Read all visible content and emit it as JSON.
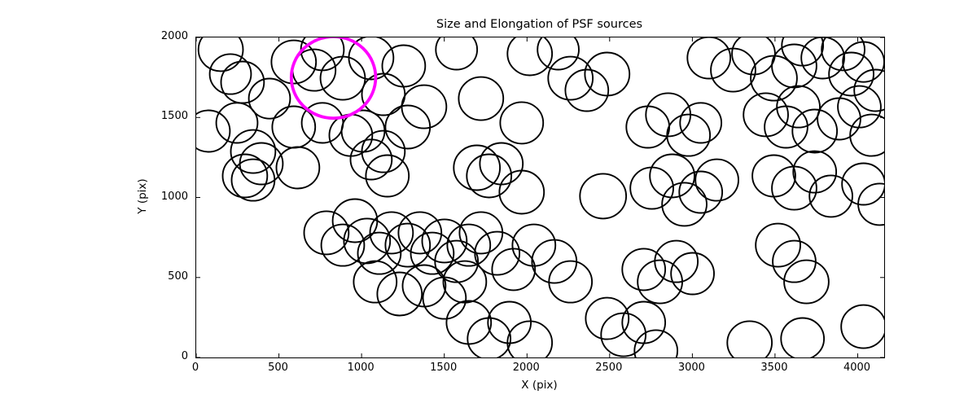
{
  "chart_data": {
    "type": "scatter",
    "title": "Size and Elongation of PSF sources",
    "xlabel": "X (pix)",
    "ylabel": "Y (pix)",
    "xlim": [
      0,
      4160
    ],
    "ylim": [
      0,
      2000
    ],
    "xticks": [
      0,
      500,
      1000,
      1500,
      2000,
      2500,
      3000,
      3500,
      4000
    ],
    "yticks": [
      0,
      500,
      1000,
      1500,
      2000
    ],
    "grid": false,
    "legend": "none",
    "marker_style": {
      "shape": "circle",
      "fill": "none",
      "edge_color": "#000000",
      "line_width": 1.9
    },
    "highlight_circle": {
      "x": 830,
      "y": 1750,
      "r": 255,
      "color": "#ff00ff",
      "line_width": 3.8
    },
    "circles": [
      [
        148,
        1924,
        135
      ],
      [
        207,
        1771,
        125
      ],
      [
        280,
        1720,
        130
      ],
      [
        443,
        1618,
        125
      ],
      [
        590,
        1847,
        135
      ],
      [
        713,
        1796,
        130
      ],
      [
        763,
        1924,
        130
      ],
      [
        886,
        1745,
        135
      ],
      [
        1058,
        1873,
        135
      ],
      [
        1132,
        1644,
        130
      ],
      [
        1255,
        1822,
        130
      ],
      [
        1378,
        1567,
        135
      ],
      [
        1574,
        1924,
        125
      ],
      [
        2017,
        1898,
        135
      ],
      [
        2189,
        1924,
        125
      ],
      [
        2263,
        1745,
        135
      ],
      [
        2362,
        1669,
        130
      ],
      [
        2485,
        1771,
        135
      ],
      [
        3100,
        1873,
        130
      ],
      [
        3247,
        1796,
        135
      ],
      [
        3370,
        1898,
        130
      ],
      [
        3493,
        1745,
        140
      ],
      [
        3616,
        1822,
        135
      ],
      [
        3666,
        1949,
        125
      ],
      [
        3789,
        1873,
        130
      ],
      [
        3912,
        1924,
        130
      ],
      [
        3961,
        1771,
        135
      ],
      [
        4035,
        1847,
        125
      ],
      [
        4109,
        1669,
        130
      ],
      [
        74,
        1415,
        130
      ],
      [
        246,
        1466,
        125
      ],
      [
        344,
        1287,
        135
      ],
      [
        394,
        1211,
        130
      ],
      [
        590,
        1440,
        130
      ],
      [
        763,
        1466,
        125
      ],
      [
        935,
        1389,
        130
      ],
      [
        1009,
        1415,
        130
      ],
      [
        1132,
        1287,
        130
      ],
      [
        1279,
        1440,
        135
      ],
      [
        1722,
        1618,
        135
      ],
      [
        1968,
        1466,
        130
      ],
      [
        2731,
        1440,
        130
      ],
      [
        2854,
        1517,
        135
      ],
      [
        2977,
        1389,
        130
      ],
      [
        3051,
        1466,
        125
      ],
      [
        3444,
        1517,
        135
      ],
      [
        3567,
        1440,
        130
      ],
      [
        3641,
        1567,
        130
      ],
      [
        3740,
        1415,
        135
      ],
      [
        3887,
        1491,
        130
      ],
      [
        4010,
        1567,
        130
      ],
      [
        4084,
        1389,
        130
      ],
      [
        295,
        1135,
        135
      ],
      [
        344,
        1109,
        130
      ],
      [
        615,
        1186,
        130
      ],
      [
        1058,
        1237,
        125
      ],
      [
        1156,
        1135,
        130
      ],
      [
        1697,
        1186,
        140
      ],
      [
        1771,
        1135,
        135
      ],
      [
        1845,
        1211,
        130
      ],
      [
        1968,
        1033,
        135
      ],
      [
        2460,
        1008,
        140
      ],
      [
        2755,
        1058,
        130
      ],
      [
        2878,
        1135,
        135
      ],
      [
        2952,
        957,
        135
      ],
      [
        3051,
        1033,
        130
      ],
      [
        3149,
        1109,
        130
      ],
      [
        3493,
        1135,
        130
      ],
      [
        3616,
        1058,
        135
      ],
      [
        3740,
        1160,
        130
      ],
      [
        3838,
        1008,
        130
      ],
      [
        4035,
        1084,
        130
      ],
      [
        4133,
        957,
        130
      ],
      [
        787,
        779,
        135
      ],
      [
        886,
        702,
        130
      ],
      [
        960,
        855,
        135
      ],
      [
        1033,
        728,
        140
      ],
      [
        1107,
        651,
        130
      ],
      [
        1181,
        779,
        130
      ],
      [
        1279,
        702,
        135
      ],
      [
        1353,
        779,
        130
      ],
      [
        1427,
        651,
        130
      ],
      [
        1501,
        728,
        135
      ],
      [
        1574,
        600,
        130
      ],
      [
        1648,
        702,
        130
      ],
      [
        1722,
        779,
        130
      ],
      [
        1820,
        651,
        135
      ],
      [
        1919,
        550,
        130
      ],
      [
        1082,
        473,
        130
      ],
      [
        1230,
        397,
        135
      ],
      [
        1378,
        448,
        130
      ],
      [
        1501,
        371,
        130
      ],
      [
        1624,
        473,
        130
      ],
      [
        2042,
        702,
        130
      ],
      [
        2165,
        600,
        135
      ],
      [
        2263,
        473,
        130
      ],
      [
        2706,
        550,
        130
      ],
      [
        2804,
        473,
        135
      ],
      [
        2903,
        600,
        130
      ],
      [
        3001,
        524,
        130
      ],
      [
        3518,
        702,
        135
      ],
      [
        3616,
        600,
        130
      ],
      [
        3690,
        473,
        135
      ],
      [
        1648,
        219,
        135
      ],
      [
        1771,
        117,
        130
      ],
      [
        1894,
        219,
        130
      ],
      [
        2017,
        92,
        135
      ],
      [
        2485,
        244,
        130
      ],
      [
        2583,
        142,
        135
      ],
      [
        2706,
        219,
        130
      ],
      [
        2780,
        41,
        130
      ],
      [
        3346,
        92,
        135
      ],
      [
        3666,
        117,
        130
      ],
      [
        4035,
        193,
        135
      ]
    ]
  }
}
